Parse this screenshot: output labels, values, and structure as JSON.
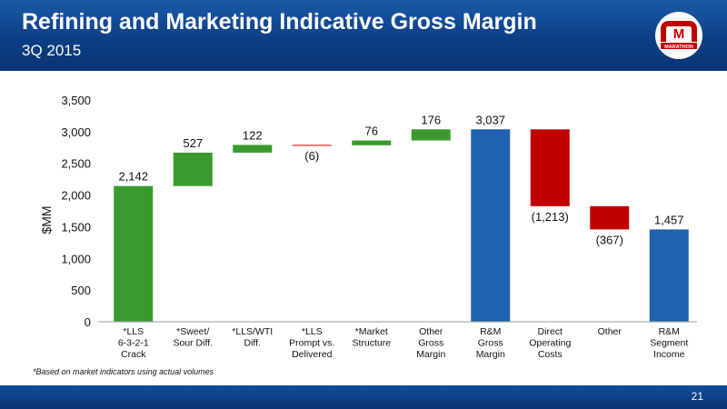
{
  "header": {
    "title": "Refining and Marketing Indicative Gross Margin",
    "subtitle": "3Q 2015",
    "logo_text": "MARATHON",
    "logo_mark": "M",
    "accent": "#0c3f86"
  },
  "footnote": "*Based on market indicators using actual volumes",
  "page_number": "21",
  "colors": {
    "increase": "#3a9a2e",
    "decrease": "#c00000",
    "total": "#1f63b0"
  },
  "chart_data": {
    "type": "bar",
    "subtype": "waterfall",
    "ylabel": "$MM",
    "ylim": [
      0,
      3500
    ],
    "yticks": [
      0,
      500,
      1000,
      1500,
      2000,
      2500,
      3000,
      3500
    ],
    "ytick_labels": [
      "0",
      "500",
      "1,000",
      "1,500",
      "2,000",
      "2,500",
      "3,000",
      "3,500"
    ],
    "grid": false,
    "legend": false,
    "bars": [
      {
        "category": [
          "*LLS",
          "6-3-2-1",
          "Crack"
        ],
        "start": 0,
        "end": 2142,
        "kind": "increase",
        "label": "2,142"
      },
      {
        "category": [
          "*Sweet/",
          "Sour Diff."
        ],
        "start": 2142,
        "end": 2669,
        "kind": "increase",
        "label": "527"
      },
      {
        "category": [
          "*LLS/WTI",
          "Diff."
        ],
        "start": 2669,
        "end": 2791,
        "kind": "increase",
        "label": "122"
      },
      {
        "category": [
          "*LLS",
          "Prompt vs.",
          "Delivered"
        ],
        "start": 2791,
        "end": 2785,
        "kind": "decrease",
        "label": "(6)"
      },
      {
        "category": [
          "*Market",
          "Structure"
        ],
        "start": 2785,
        "end": 2861,
        "kind": "increase",
        "label": "76"
      },
      {
        "category": [
          "Other",
          "Gross",
          "Margin"
        ],
        "start": 2861,
        "end": 3037,
        "kind": "increase",
        "label": "176"
      },
      {
        "category": [
          "R&M",
          "Gross",
          "Margin"
        ],
        "start": 0,
        "end": 3037,
        "kind": "total",
        "label": "3,037"
      },
      {
        "category": [
          "Direct",
          "Operating",
          "Costs"
        ],
        "start": 3037,
        "end": 1824,
        "kind": "decrease",
        "label": "(1,213)"
      },
      {
        "category": [
          "Other"
        ],
        "start": 1824,
        "end": 1457,
        "kind": "decrease",
        "label": "(367)"
      },
      {
        "category": [
          "R&M",
          "Segment",
          "Income"
        ],
        "start": 0,
        "end": 1457,
        "kind": "total",
        "label": "1,457"
      }
    ]
  }
}
